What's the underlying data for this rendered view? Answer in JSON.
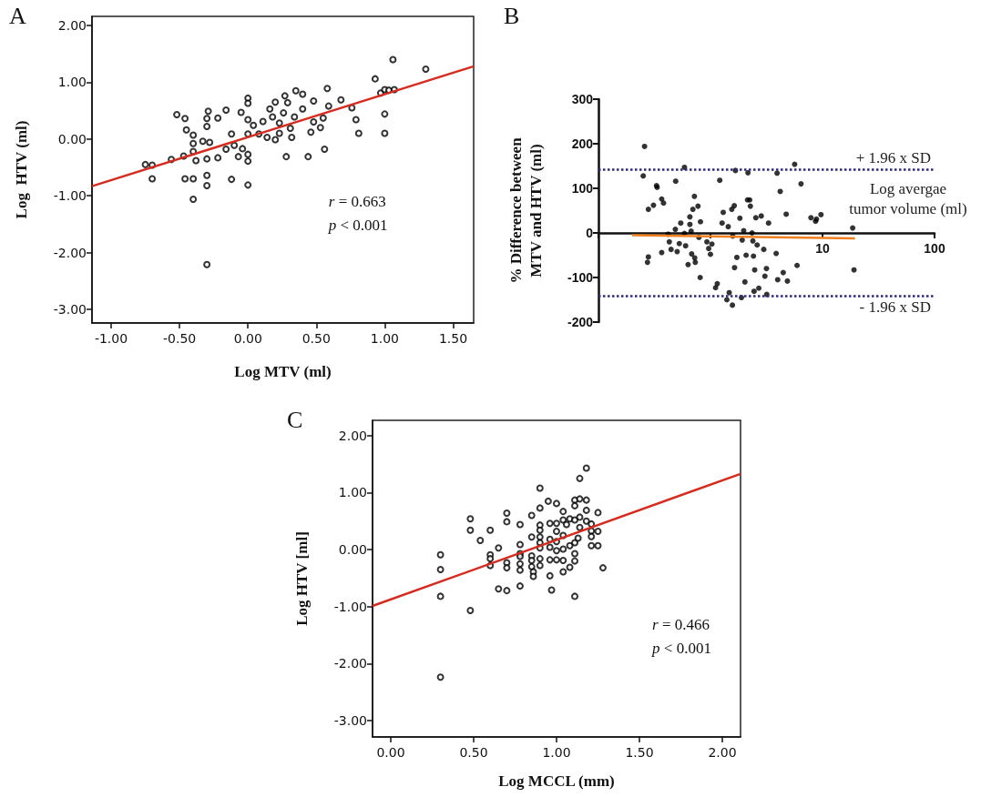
{
  "chart_data": [
    {
      "type": "scatter",
      "title": "A",
      "xlabel": "Log MTV (ml)",
      "ylabel": "Log  HTV (ml)",
      "marker": "circle",
      "grid": false,
      "xlim": [
        -1.14,
        1.65
      ],
      "ylim": [
        -3.24,
        2.16
      ],
      "xticks": [
        {
          "value": -1,
          "label": "-1.00"
        },
        {
          "value": -0.5,
          "label": "-0.50"
        },
        {
          "value": 0,
          "label": "0.00"
        },
        {
          "value": 0.5,
          "label": "0.50"
        },
        {
          "value": 1,
          "label": "1.00"
        },
        {
          "value": 1.5,
          "label": "1.50"
        }
      ],
      "yticks": [
        {
          "value": -3,
          "label": "-3.00"
        },
        {
          "value": -2,
          "label": "-2.00"
        },
        {
          "value": -1,
          "label": "-1.00"
        },
        {
          "value": 0,
          "label": "0.00"
        },
        {
          "value": 1,
          "label": "1.00"
        },
        {
          "value": 2,
          "label": "2.00"
        }
      ],
      "annotations": [
        "r = 0.663",
        "p < 0.001"
      ],
      "series": [
        {
          "type": "scatter",
          "color": "#000000",
          "x": [
            -0.75,
            -0.7,
            -0.7,
            -0.56,
            -0.52,
            -0.47,
            -0.46,
            -0.46,
            -0.45,
            -0.4,
            -0.4,
            -0.4,
            -0.4,
            -0.4,
            -0.38,
            -0.33,
            -0.3,
            -0.3,
            -0.3,
            -0.3,
            -0.3,
            -0.3,
            -0.29,
            -0.28,
            -0.22,
            -0.22,
            -0.16,
            -0.16,
            -0.12,
            -0.12,
            -0.1,
            -0.07,
            -0.05,
            -0.04,
            0,
            0,
            0,
            0,
            0,
            0,
            0,
            0.04,
            0.08,
            0.11,
            0.14,
            0.16,
            0.18,
            0.2,
            0.2,
            0.23,
            0.23,
            0.26,
            0.27,
            0.28,
            0.29,
            0.31,
            0.32,
            0.34,
            0.35,
            0.4,
            0.4,
            0.44,
            0.46,
            0.48,
            0.48,
            0.53,
            0.55,
            0.56,
            0.58,
            0.59,
            0.68,
            0.76,
            0.79,
            0.81,
            0.93,
            0.97,
            1.0,
            1.0,
            1.0,
            1.03,
            1.06,
            1.07,
            1.3
          ],
          "values": [
            -0.45,
            -0.46,
            -0.7,
            -0.36,
            0.43,
            -0.3,
            0.36,
            -0.7,
            0.16,
            0.07,
            -0.08,
            -0.22,
            -0.7,
            -1.06,
            -0.38,
            -0.04,
            0.36,
            0.22,
            -0.35,
            -0.64,
            -0.82,
            -2.21,
            0.49,
            -0.06,
            0.37,
            -0.33,
            0.51,
            -0.18,
            0.09,
            -0.71,
            -0.11,
            -0.31,
            0.47,
            -0.17,
            0.72,
            0.63,
            0.34,
            0.09,
            -0.27,
            -0.39,
            -0.81,
            0.24,
            0.09,
            0.31,
            0.03,
            0.53,
            0.39,
            0.65,
            -0.01,
            0.28,
            0.1,
            0.46,
            0.76,
            -0.31,
            0.64,
            0.19,
            0.03,
            0.39,
            0.85,
            0.79,
            0.53,
            -0.31,
            0.12,
            0.67,
            0.3,
            0.2,
            0.37,
            -0.18,
            0.89,
            0.58,
            0.69,
            0.55,
            0.34,
            0.1,
            1.06,
            0.81,
            0.87,
            0.44,
            0.1,
            0.86,
            1.4,
            0.87,
            1.23
          ]
        },
        {
          "type": "line",
          "color": "#d62c1f",
          "marker": "none",
          "x": [
            -1.14,
            1.65
          ],
          "values": [
            -0.83,
            1.28
          ]
        }
      ]
    },
    {
      "type": "scatter",
      "title": "B",
      "xlabel": "Log avergae tumor volume (ml)",
      "ylabel": "% Difference between\nMTV and HTV (ml)",
      "marker": "circle",
      "grid": false,
      "log": "x",
      "xlim": [
        0.1,
        100
      ],
      "ylim": [
        -200,
        300
      ],
      "xticks": [
        {
          "value": 0.1,
          "label": null
        },
        {
          "value": 1,
          "label": null
        },
        10,
        100
      ],
      "yticks": [
        -200,
        -100,
        0,
        100,
        200,
        300
      ],
      "ref_lines": [
        {
          "axis": "y",
          "value": 142,
          "label": "+ 1.96 x SD",
          "color": "#2b2b80",
          "line_style": "dotted"
        },
        {
          "axis": "y",
          "value": -141,
          "label": "- 1.96 x SD",
          "color": "#2b2b80",
          "line_style": "dotted"
        }
      ],
      "series": [
        {
          "type": "scatter",
          "color": "#000000",
          "x": [
            0.258,
            0.251,
            0.279,
            0.279,
            0.274,
            0.31,
            0.33,
            0.334,
            0.367,
            0.381,
            0.367,
            0.419,
            0.429,
            0.445,
            0.486,
            0.489,
            0.504,
            0.527,
            0.543,
            0.586,
            0.586,
            0.6,
            0.631,
            0.655,
            0.655,
            0.672,
            0.679,
            0.697,
            0.719,
            0.723,
            0.732,
            0.774,
            0.789,
            0.809,
            0.814,
            0.929,
            0.964,
            1.0,
            1.03,
            1.11,
            1.15,
            1.21,
            1.27,
            1.3,
            1.4,
            1.44,
            1.47,
            1.55,
            1.58,
            1.67,
            1.63,
            1.57,
            1.64,
            1.72,
            1.83,
            1.89,
            1.92,
            1.98,
            2.03,
            2.08,
            2.14,
            2.16,
            2.24,
            2.27,
            2.35,
            2.39,
            2.42,
            2.45,
            2.48,
            2.54,
            2.61,
            2.7,
            2.84,
            2.99,
            3.06,
            3.16,
            3.18,
            3.3,
            3.86,
            3.93,
            3.98,
            4.19,
            4.46,
            4.74,
            4.86,
            5.64,
            5.93,
            6.43,
            7.89,
            8.67,
            8.83,
            9.69,
            18.6,
            19.1
          ],
          "values": [
            194,
            128,
            53,
            -54,
            -66,
            62,
            106,
            102,
            76,
            67,
            -44,
            -3,
            -20,
            -37,
            8,
            116,
            -42,
            -24,
            22,
            147,
            -1,
            -29,
            -71,
            36,
            19,
            4,
            -47,
            53,
            82,
            -56,
            -66,
            60,
            -10,
            -100,
            25,
            -20,
            -35,
            -48,
            -25,
            -123,
            -114,
            118,
            22,
            46,
            -150,
            14,
            -134,
            53,
            -7,
            140,
            61,
            -162,
            -78,
            -55,
            33,
            -145,
            -16,
            5,
            -110,
            -50,
            74,
            135,
            74,
            60,
            0,
            -18,
            -52,
            -131,
            -83,
            34,
            -27,
            -124,
            38,
            -37,
            -97,
            -80,
            -138,
            22,
            -46,
            134,
            -105,
            93,
            -89,
            42,
            -108,
            154,
            -73,
            110,
            34,
            26,
            31,
            41,
            11,
            -83
          ]
        },
        {
          "type": "line",
          "color": "#f07f20",
          "marker": "none",
          "x": [
            0.2,
            19.5
          ],
          "values": [
            -5,
            -12
          ]
        }
      ]
    },
    {
      "type": "scatter",
      "title": "C",
      "xlabel": "Log MCCL (mm)",
      "ylabel": "Log HTV [ml]",
      "marker": "circle",
      "grid": false,
      "xlim": [
        -0.11,
        2.11
      ],
      "ylim": [
        -3.29,
        2.27
      ],
      "xticks": [
        {
          "value": 0,
          "label": "0.00"
        },
        {
          "value": 0.5,
          "label": "0.50"
        },
        {
          "value": 1,
          "label": "1.00"
        },
        {
          "value": 1.5,
          "label": "1.50"
        },
        {
          "value": 2,
          "label": "2.00"
        }
      ],
      "yticks": [
        {
          "value": -3,
          "label": "-3.00"
        },
        {
          "value": -2,
          "label": "-2.00"
        },
        {
          "value": -1,
          "label": "-1.00"
        },
        {
          "value": 0,
          "label": "0.00"
        },
        {
          "value": 1,
          "label": "1.00"
        },
        {
          "value": 2,
          "label": "2.00"
        }
      ],
      "annotations": [
        "r = 0.466",
        "p < 0.001"
      ],
      "series": [
        {
          "type": "scatter",
          "color": "#000000",
          "x": [
            0.3,
            0.3,
            0.3,
            0.3,
            0.48,
            0.48,
            0.48,
            0.54,
            0.6,
            0.6,
            0.6,
            0.6,
            0.65,
            0.65,
            0.7,
            0.7,
            0.7,
            0.7,
            0.7,
            0.78,
            0.78,
            0.78,
            0.78,
            0.78,
            0.78,
            0.78,
            0.85,
            0.85,
            0.85,
            0.85,
            0.85,
            0.86,
            0.86,
            0.9,
            0.9,
            0.9,
            0.9,
            0.9,
            0.9,
            0.9,
            0.9,
            0.9,
            0.95,
            0.96,
            0.96,
            0.96,
            0.96,
            0.96,
            0.97,
            1.0,
            1.0,
            1.0,
            1.0,
            1.0,
            1.0,
            1.04,
            1.04,
            1.04,
            1.04,
            1.04,
            1.04,
            1.06,
            1.08,
            1.08,
            1.08,
            1.11,
            1.11,
            1.11,
            1.11,
            1.11,
            1.11,
            1.11,
            1.13,
            1.14,
            1.14,
            1.14,
            1.14,
            1.18,
            1.18,
            1.18,
            1.18,
            1.21,
            1.21,
            1.21,
            1.21,
            1.25,
            1.25,
            1.25,
            1.28
          ],
          "values": [
            -0.09,
            -0.35,
            -0.82,
            -2.24,
            0.54,
            0.34,
            -1.07,
            0.16,
            0.34,
            -0.09,
            -0.16,
            -0.28,
            0.03,
            -0.69,
            0.64,
            0.49,
            -0.23,
            -0.32,
            -0.72,
            0.44,
            0.09,
            -0.07,
            -0.12,
            -0.25,
            -0.36,
            -0.64,
            0.6,
            0.22,
            -0.11,
            -0.19,
            -0.3,
            -0.39,
            -0.47,
            1.08,
            0.73,
            0.43,
            0.34,
            0.22,
            0.12,
            0.03,
            -0.16,
            -0.28,
            0.85,
            0.46,
            0.18,
            0.04,
            -0.18,
            -0.46,
            -0.71,
            0.81,
            0.46,
            0.32,
            0.14,
            -0.02,
            -0.18,
            0.67,
            0.52,
            0.25,
            0.01,
            -0.19,
            -0.39,
            0.44,
            0.54,
            0.07,
            -0.31,
            0.87,
            0.77,
            0.52,
            0.12,
            -0.07,
            -0.2,
            -0.82,
            0.2,
            1.25,
            0.89,
            0.57,
            0.39,
            1.43,
            0.87,
            0.69,
            0.5,
            0.45,
            0.33,
            0.23,
            0.07,
            0.65,
            0.32,
            0.07,
            -0.32
          ]
        },
        {
          "type": "line",
          "color": "#d62c1f",
          "marker": "none",
          "x": [
            -0.11,
            2.11
          ],
          "values": [
            -0.99,
            1.33
          ]
        }
      ]
    }
  ]
}
